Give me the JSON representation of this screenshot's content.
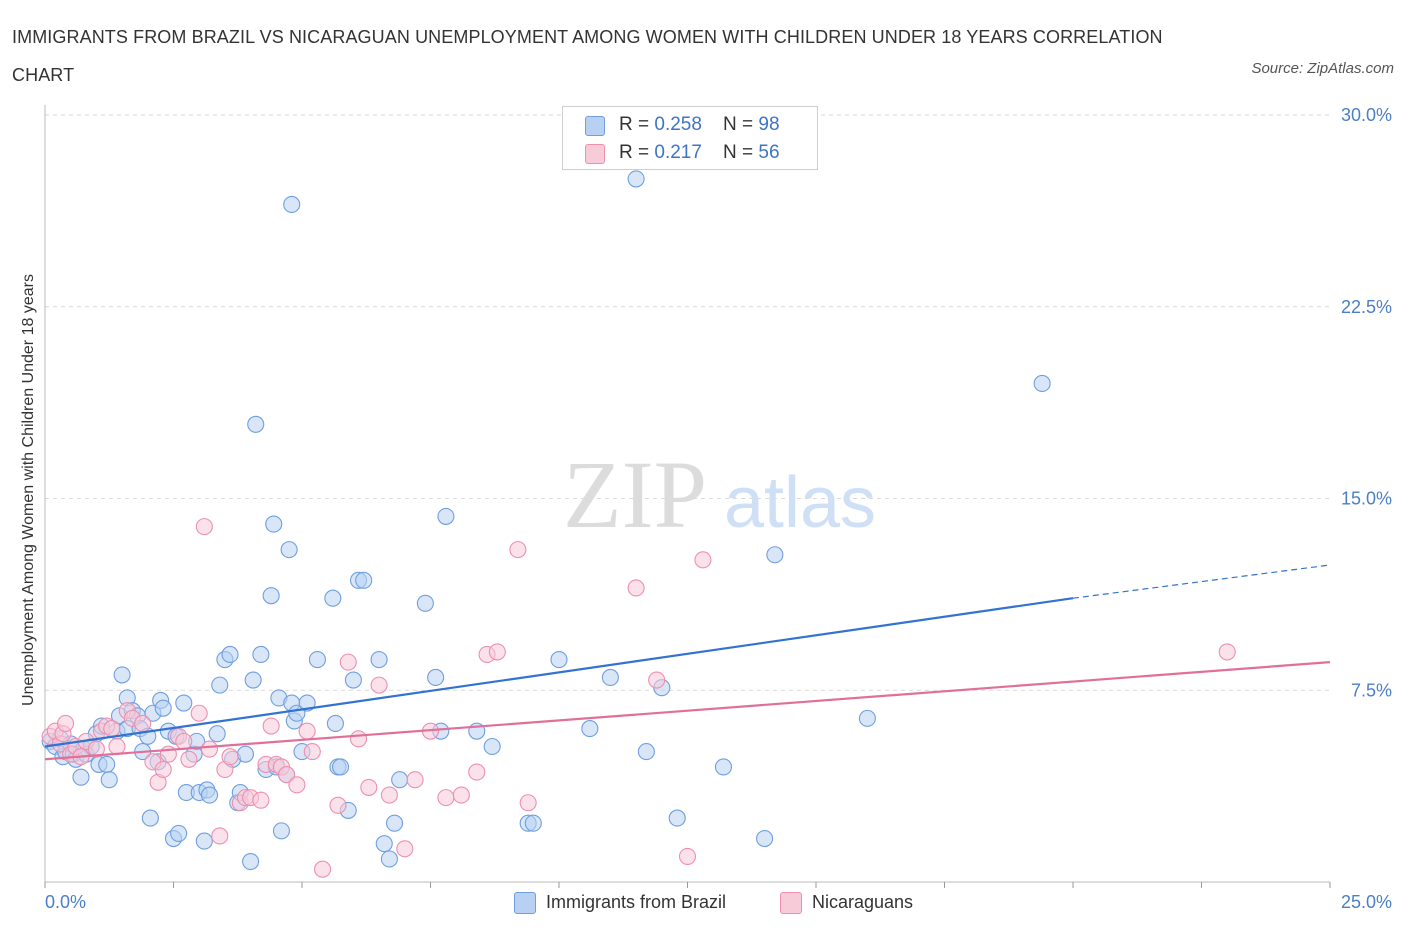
{
  "title": "IMMIGRANTS FROM BRAZIL VS NICARAGUAN UNEMPLOYMENT AMONG WOMEN WITH CHILDREN UNDER 18 YEARS CORRELATION CHART",
  "source": "Source: ZipAtlas.com",
  "watermark": {
    "zip": "ZIP",
    "atlas": "atlas"
  },
  "legend_top": [
    {
      "r_label": "R = ",
      "r_value": "0.258",
      "n_label": "N = ",
      "n_value": "98",
      "color": "#a9c8f2"
    },
    {
      "r_label": "R = ",
      "r_value": "0.217",
      "n_label": "N = ",
      "n_value": "56",
      "color": "#f5b9cc"
    }
  ],
  "chart_data": {
    "type": "scatter",
    "ylabel": "Unemployment Among Women with Children Under 18 years",
    "xlim": [
      0,
      25
    ],
    "ylim": [
      0,
      30
    ],
    "x_tick_labels": [
      {
        "value": 0,
        "label": "0.0%"
      },
      {
        "value": 25,
        "label": "25.0%"
      }
    ],
    "y_tick_labels": [
      {
        "value": 7.5,
        "label": "7.5%"
      },
      {
        "value": 15,
        "label": "15.0%"
      },
      {
        "value": 22.5,
        "label": "22.5%"
      },
      {
        "value": 30,
        "label": "30.0%"
      }
    ],
    "grid": true,
    "legend": "bottom",
    "series": [
      {
        "name": "Immigrants from Brazil",
        "color": "#6f9fe0",
        "fill": "#b8d1f3",
        "trend": {
          "x0": 0,
          "y0": 5.3,
          "x1": 20,
          "y1": 11.1,
          "dashed_to_x": 25,
          "dashed_to_y": 12.4,
          "color": "#3273d1"
        },
        "points": [
          [
            0.1,
            5.5
          ],
          [
            0.2,
            5.3
          ],
          [
            0.3,
            5.6
          ],
          [
            0.35,
            4.9
          ],
          [
            0.4,
            5.1
          ],
          [
            0.5,
            5.4
          ],
          [
            0.55,
            5.0
          ],
          [
            0.6,
            4.8
          ],
          [
            0.7,
            4.1
          ],
          [
            0.75,
            5.2
          ],
          [
            0.8,
            5.0
          ],
          [
            0.9,
            5.3
          ],
          [
            1.0,
            5.8
          ],
          [
            1.05,
            4.6
          ],
          [
            1.1,
            6.1
          ],
          [
            1.2,
            4.6
          ],
          [
            1.25,
            4.0
          ],
          [
            1.4,
            5.9
          ],
          [
            1.45,
            6.5
          ],
          [
            1.5,
            8.1
          ],
          [
            1.6,
            6.0
          ],
          [
            1.6,
            7.2
          ],
          [
            1.7,
            6.7
          ],
          [
            1.8,
            6.5
          ],
          [
            1.85,
            6.0
          ],
          [
            1.9,
            5.1
          ],
          [
            2.0,
            5.7
          ],
          [
            2.1,
            6.6
          ],
          [
            2.05,
            2.5
          ],
          [
            2.2,
            4.7
          ],
          [
            2.25,
            7.1
          ],
          [
            2.3,
            6.8
          ],
          [
            2.4,
            5.9
          ],
          [
            2.5,
            1.7
          ],
          [
            2.55,
            5.7
          ],
          [
            2.6,
            1.9
          ],
          [
            2.7,
            7.0
          ],
          [
            2.75,
            3.5
          ],
          [
            2.9,
            5.0
          ],
          [
            2.95,
            5.5
          ],
          [
            3.0,
            3.5
          ],
          [
            3.1,
            1.6
          ],
          [
            3.15,
            3.6
          ],
          [
            3.2,
            3.4
          ],
          [
            3.35,
            5.8
          ],
          [
            3.4,
            7.7
          ],
          [
            3.5,
            8.7
          ],
          [
            3.6,
            8.9
          ],
          [
            3.65,
            4.8
          ],
          [
            3.75,
            3.1
          ],
          [
            3.8,
            3.5
          ],
          [
            3.9,
            5.0
          ],
          [
            4.0,
            0.8
          ],
          [
            4.05,
            7.9
          ],
          [
            4.2,
            8.9
          ],
          [
            4.3,
            4.4
          ],
          [
            4.4,
            11.2
          ],
          [
            4.45,
            14.0
          ],
          [
            4.5,
            4.5
          ],
          [
            4.55,
            7.2
          ],
          [
            4.6,
            2.0
          ],
          [
            4.7,
            4.2
          ],
          [
            4.75,
            13.0
          ],
          [
            4.8,
            7.0
          ],
          [
            4.85,
            6.3
          ],
          [
            4.9,
            6.6
          ],
          [
            5.0,
            5.1
          ],
          [
            5.1,
            7.0
          ],
          [
            5.3,
            8.7
          ],
          [
            5.6,
            11.1
          ],
          [
            5.65,
            6.2
          ],
          [
            5.7,
            4.5
          ],
          [
            5.75,
            4.5
          ],
          [
            5.9,
            2.8
          ],
          [
            6.0,
            7.9
          ],
          [
            6.1,
            11.8
          ],
          [
            6.2,
            11.8
          ],
          [
            6.5,
            8.7
          ],
          [
            6.6,
            1.5
          ],
          [
            6.7,
            0.9
          ],
          [
            6.8,
            2.3
          ],
          [
            6.9,
            4.0
          ],
          [
            7.4,
            10.9
          ],
          [
            7.6,
            8.0
          ],
          [
            7.7,
            5.9
          ],
          [
            7.8,
            14.3
          ],
          [
            8.4,
            5.9
          ],
          [
            8.7,
            5.3
          ],
          [
            9.4,
            2.3
          ],
          [
            9.5,
            2.3
          ],
          [
            10.0,
            8.7
          ],
          [
            10.6,
            6.0
          ],
          [
            11.0,
            8.0
          ],
          [
            11.7,
            5.1
          ],
          [
            12.0,
            7.6
          ],
          [
            12.3,
            2.5
          ],
          [
            13.2,
            4.5
          ],
          [
            14.0,
            1.7
          ],
          [
            14.2,
            12.8
          ],
          [
            16.0,
            6.4
          ],
          [
            4.8,
            26.5
          ],
          [
            11.5,
            27.5
          ],
          [
            19.4,
            19.5
          ],
          [
            4.1,
            17.9
          ]
        ]
      },
      {
        "name": "Nicaraguans",
        "color": "#ee8fae",
        "fill": "#f8cbd9",
        "trend": {
          "x0": 0,
          "y0": 4.8,
          "x1": 25,
          "y1": 8.6,
          "color": "#e0709a"
        },
        "points": [
          [
            0.1,
            5.7
          ],
          [
            0.2,
            5.9
          ],
          [
            0.3,
            5.4
          ],
          [
            0.35,
            5.8
          ],
          [
            0.4,
            6.2
          ],
          [
            0.5,
            5.0
          ],
          [
            0.6,
            5.3
          ],
          [
            0.7,
            4.9
          ],
          [
            0.8,
            5.5
          ],
          [
            1.0,
            5.2
          ],
          [
            1.1,
            5.9
          ],
          [
            1.2,
            6.1
          ],
          [
            1.3,
            6.0
          ],
          [
            1.4,
            5.3
          ],
          [
            1.6,
            6.7
          ],
          [
            1.7,
            6.4
          ],
          [
            1.9,
            6.2
          ],
          [
            2.1,
            4.7
          ],
          [
            2.2,
            3.9
          ],
          [
            2.3,
            4.4
          ],
          [
            2.4,
            5.0
          ],
          [
            2.6,
            5.7
          ],
          [
            2.7,
            5.5
          ],
          [
            2.8,
            4.8
          ],
          [
            3.0,
            6.6
          ],
          [
            3.1,
            13.9
          ],
          [
            3.2,
            5.2
          ],
          [
            3.4,
            1.8
          ],
          [
            3.5,
            4.4
          ],
          [
            3.6,
            4.9
          ],
          [
            3.8,
            3.1
          ],
          [
            3.9,
            3.3
          ],
          [
            4.0,
            3.3
          ],
          [
            4.2,
            3.2
          ],
          [
            4.3,
            4.6
          ],
          [
            4.4,
            6.1
          ],
          [
            4.5,
            4.6
          ],
          [
            4.6,
            4.5
          ],
          [
            4.7,
            4.2
          ],
          [
            4.9,
            3.8
          ],
          [
            5.1,
            5.9
          ],
          [
            5.2,
            5.1
          ],
          [
            5.4,
            0.5
          ],
          [
            5.7,
            3.0
          ],
          [
            5.9,
            8.6
          ],
          [
            6.1,
            5.6
          ],
          [
            6.3,
            3.7
          ],
          [
            6.5,
            7.7
          ],
          [
            6.7,
            3.4
          ],
          [
            7.0,
            1.3
          ],
          [
            7.2,
            4.0
          ],
          [
            7.5,
            5.9
          ],
          [
            7.8,
            3.3
          ],
          [
            8.1,
            3.4
          ],
          [
            8.4,
            4.3
          ],
          [
            8.6,
            8.9
          ],
          [
            8.8,
            9.0
          ],
          [
            9.2,
            13.0
          ],
          [
            9.4,
            3.1
          ],
          [
            11.5,
            11.5
          ],
          [
            12.5,
            1.0
          ],
          [
            12.8,
            12.6
          ],
          [
            23.0,
            9.0
          ],
          [
            11.9,
            7.9
          ]
        ]
      }
    ]
  }
}
